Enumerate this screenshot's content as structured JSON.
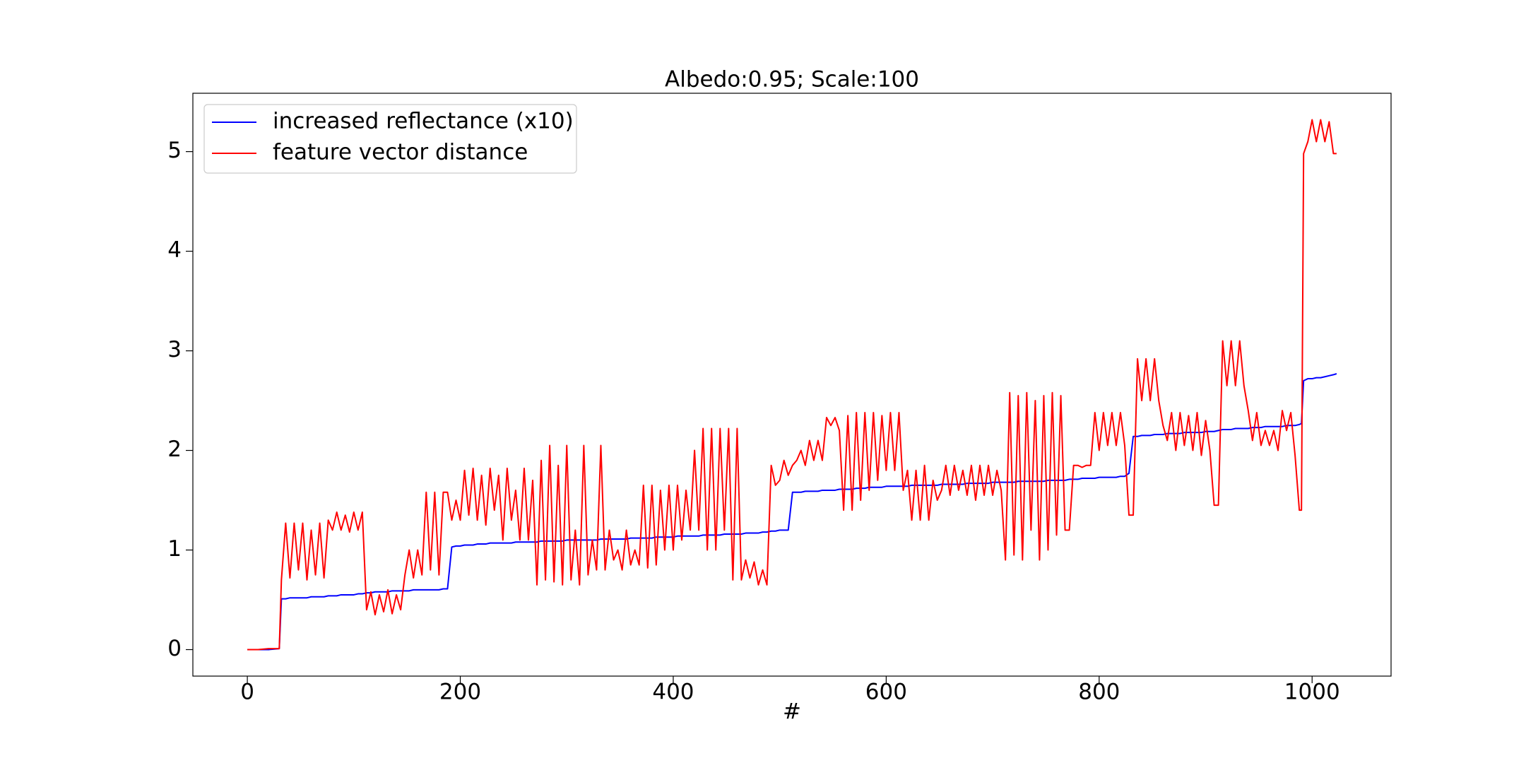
{
  "chart_data": {
    "type": "line",
    "title": "Albedo:0.95; Scale:100",
    "x_label": "#",
    "x": [
      0,
      10,
      20,
      30,
      32,
      36,
      40,
      44,
      48,
      52,
      56,
      60,
      64,
      68,
      72,
      76,
      80,
      84,
      88,
      92,
      96,
      100,
      104,
      108,
      112,
      116,
      120,
      124,
      128,
      132,
      136,
      140,
      144,
      148,
      152,
      156,
      160,
      164,
      168,
      172,
      176,
      180,
      184,
      188,
      192,
      196,
      200,
      204,
      208,
      212,
      216,
      220,
      224,
      228,
      232,
      236,
      240,
      244,
      248,
      252,
      256,
      260,
      264,
      268,
      272,
      276,
      280,
      284,
      288,
      292,
      296,
      300,
      304,
      308,
      312,
      316,
      320,
      324,
      328,
      332,
      336,
      340,
      344,
      348,
      352,
      356,
      360,
      364,
      368,
      372,
      376,
      380,
      384,
      388,
      392,
      396,
      400,
      404,
      408,
      412,
      416,
      420,
      424,
      428,
      432,
      436,
      440,
      444,
      448,
      452,
      456,
      460,
      464,
      468,
      472,
      476,
      480,
      484,
      488,
      492,
      496,
      500,
      504,
      508,
      512,
      516,
      520,
      524,
      528,
      532,
      536,
      540,
      544,
      548,
      552,
      556,
      560,
      564,
      568,
      572,
      576,
      580,
      584,
      588,
      592,
      596,
      600,
      604,
      608,
      612,
      616,
      620,
      624,
      628,
      632,
      636,
      640,
      644,
      648,
      652,
      656,
      660,
      664,
      668,
      672,
      676,
      680,
      684,
      688,
      692,
      696,
      700,
      704,
      708,
      712,
      716,
      720,
      724,
      728,
      732,
      736,
      740,
      744,
      748,
      752,
      756,
      760,
      764,
      768,
      772,
      776,
      780,
      784,
      788,
      792,
      796,
      800,
      804,
      808,
      812,
      816,
      820,
      824,
      828,
      832,
      836,
      840,
      844,
      848,
      852,
      856,
      860,
      864,
      868,
      872,
      876,
      880,
      884,
      888,
      892,
      896,
      900,
      904,
      908,
      912,
      916,
      920,
      924,
      928,
      932,
      936,
      940,
      944,
      948,
      952,
      956,
      960,
      964,
      968,
      972,
      976,
      980,
      984,
      988,
      990,
      992,
      996,
      1000,
      1004,
      1008,
      1012,
      1016,
      1020,
      1023
    ],
    "series": [
      {
        "name": "increased reflectance (x10)",
        "color": "#0000ff",
        "values": [
          0,
          0,
          0,
          0.01,
          0.51,
          0.51,
          0.52,
          0.52,
          0.52,
          0.52,
          0.52,
          0.53,
          0.53,
          0.53,
          0.53,
          0.54,
          0.54,
          0.54,
          0.55,
          0.55,
          0.55,
          0.55,
          0.56,
          0.56,
          0.57,
          0.57,
          0.58,
          0.58,
          0.58,
          0.58,
          0.59,
          0.59,
          0.59,
          0.59,
          0.59,
          0.6,
          0.6,
          0.6,
          0.6,
          0.6,
          0.6,
          0.6,
          0.61,
          0.61,
          1.03,
          1.04,
          1.04,
          1.05,
          1.05,
          1.05,
          1.06,
          1.06,
          1.06,
          1.07,
          1.07,
          1.07,
          1.07,
          1.07,
          1.07,
          1.08,
          1.08,
          1.08,
          1.08,
          1.08,
          1.08,
          1.09,
          1.09,
          1.09,
          1.09,
          1.09,
          1.09,
          1.1,
          1.1,
          1.1,
          1.1,
          1.1,
          1.1,
          1.1,
          1.1,
          1.11,
          1.11,
          1.11,
          1.11,
          1.11,
          1.11,
          1.11,
          1.12,
          1.12,
          1.12,
          1.12,
          1.12,
          1.12,
          1.13,
          1.13,
          1.13,
          1.13,
          1.13,
          1.14,
          1.14,
          1.14,
          1.14,
          1.14,
          1.14,
          1.15,
          1.15,
          1.15,
          1.15,
          1.15,
          1.16,
          1.16,
          1.16,
          1.16,
          1.16,
          1.17,
          1.17,
          1.17,
          1.17,
          1.18,
          1.18,
          1.19,
          1.19,
          1.2,
          1.2,
          1.2,
          1.58,
          1.58,
          1.58,
          1.59,
          1.59,
          1.59,
          1.59,
          1.6,
          1.6,
          1.6,
          1.6,
          1.61,
          1.61,
          1.61,
          1.61,
          1.62,
          1.62,
          1.62,
          1.63,
          1.63,
          1.63,
          1.63,
          1.64,
          1.64,
          1.64,
          1.64,
          1.64,
          1.64,
          1.65,
          1.65,
          1.65,
          1.65,
          1.65,
          1.65,
          1.65,
          1.66,
          1.66,
          1.66,
          1.66,
          1.66,
          1.66,
          1.67,
          1.67,
          1.67,
          1.67,
          1.67,
          1.67,
          1.68,
          1.68,
          1.68,
          1.68,
          1.68,
          1.68,
          1.69,
          1.69,
          1.69,
          1.69,
          1.69,
          1.69,
          1.69,
          1.7,
          1.7,
          1.7,
          1.7,
          1.7,
          1.71,
          1.71,
          1.71,
          1.72,
          1.72,
          1.72,
          1.72,
          1.73,
          1.73,
          1.73,
          1.73,
          1.73,
          1.74,
          1.74,
          1.77,
          2.14,
          2.14,
          2.15,
          2.15,
          2.15,
          2.16,
          2.16,
          2.16,
          2.17,
          2.17,
          2.17,
          2.17,
          2.18,
          2.18,
          2.18,
          2.18,
          2.18,
          2.19,
          2.19,
          2.19,
          2.2,
          2.21,
          2.21,
          2.21,
          2.22,
          2.22,
          2.22,
          2.22,
          2.23,
          2.23,
          2.23,
          2.24,
          2.24,
          2.24,
          2.24,
          2.24,
          2.25,
          2.25,
          2.25,
          2.26,
          2.27,
          2.7,
          2.72,
          2.72,
          2.73,
          2.73,
          2.74,
          2.75,
          2.76,
          2.77
        ]
      },
      {
        "name": "feature vector distance",
        "color": "#ff0000",
        "values": [
          0,
          0,
          0.01,
          0.01,
          0.7,
          1.27,
          0.72,
          1.27,
          0.8,
          1.27,
          0.7,
          1.2,
          0.75,
          1.27,
          0.72,
          1.3,
          1.2,
          1.38,
          1.2,
          1.35,
          1.18,
          1.38,
          1.2,
          1.38,
          0.4,
          0.58,
          0.35,
          0.55,
          0.38,
          0.6,
          0.36,
          0.55,
          0.4,
          0.75,
          1.0,
          0.72,
          1.0,
          0.75,
          1.58,
          0.8,
          1.58,
          0.75,
          1.58,
          1.58,
          1.3,
          1.5,
          1.3,
          1.8,
          1.35,
          1.82,
          1.3,
          1.75,
          1.25,
          1.82,
          1.4,
          1.75,
          1.1,
          1.82,
          1.3,
          1.6,
          1.1,
          1.82,
          1.1,
          1.7,
          0.65,
          1.9,
          0.7,
          2.05,
          0.68,
          1.85,
          0.65,
          2.05,
          0.7,
          1.2,
          0.65,
          2.05,
          0.75,
          1.1,
          0.8,
          2.05,
          0.8,
          1.2,
          0.9,
          1.0,
          0.8,
          1.2,
          0.85,
          1.0,
          0.85,
          1.65,
          0.82,
          1.65,
          0.85,
          1.6,
          1.0,
          1.65,
          1.0,
          1.65,
          1.1,
          1.6,
          1.2,
          2.0,
          1.2,
          2.22,
          1.0,
          2.22,
          1.0,
          2.22,
          1.2,
          2.22,
          0.7,
          2.22,
          0.7,
          0.9,
          0.72,
          0.88,
          0.65,
          0.8,
          0.65,
          1.85,
          1.65,
          1.7,
          1.9,
          1.75,
          1.85,
          1.9,
          2.0,
          1.85,
          2.1,
          1.9,
          2.1,
          1.9,
          2.33,
          2.25,
          2.33,
          2.2,
          1.4,
          2.35,
          1.4,
          2.38,
          1.5,
          2.38,
          1.6,
          2.38,
          1.7,
          2.35,
          1.8,
          2.38,
          1.8,
          2.38,
          1.6,
          1.8,
          1.3,
          1.8,
          1.3,
          1.85,
          1.3,
          1.7,
          1.5,
          1.6,
          1.85,
          1.55,
          1.85,
          1.6,
          1.8,
          1.55,
          1.85,
          1.5,
          1.85,
          1.55,
          1.85,
          1.55,
          1.8,
          1.6,
          0.9,
          2.58,
          0.95,
          2.55,
          0.9,
          2.58,
          1.2,
          2.5,
          0.9,
          2.55,
          1.0,
          2.58,
          1.15,
          2.55,
          1.2,
          1.2,
          1.85,
          1.85,
          1.83,
          1.85,
          1.85,
          2.38,
          2.0,
          2.38,
          2.05,
          2.38,
          2.05,
          2.38,
          2.05,
          1.35,
          1.35,
          2.92,
          2.5,
          2.92,
          2.5,
          2.92,
          2.5,
          2.25,
          2.1,
          2.38,
          2.0,
          2.38,
          2.05,
          2.35,
          2.0,
          2.38,
          1.95,
          2.3,
          2.0,
          1.45,
          1.45,
          3.1,
          2.65,
          3.1,
          2.65,
          3.1,
          2.65,
          2.4,
          2.1,
          2.38,
          2.05,
          2.2,
          2.05,
          2.2,
          2.0,
          2.4,
          2.2,
          2.38,
          1.95,
          1.4,
          1.4,
          4.98,
          5.1,
          5.32,
          5.1,
          5.32,
          5.1,
          5.3,
          4.98,
          4.98
        ]
      }
    ],
    "xlim": [
      -51.15,
      1074.15
    ],
    "xticks": [
      0,
      200,
      400,
      600,
      800,
      1000
    ],
    "ylim": [
      -0.266,
      5.586
    ],
    "yticks": [
      0,
      1,
      2,
      3,
      4,
      5
    ],
    "legend": "upper left"
  }
}
